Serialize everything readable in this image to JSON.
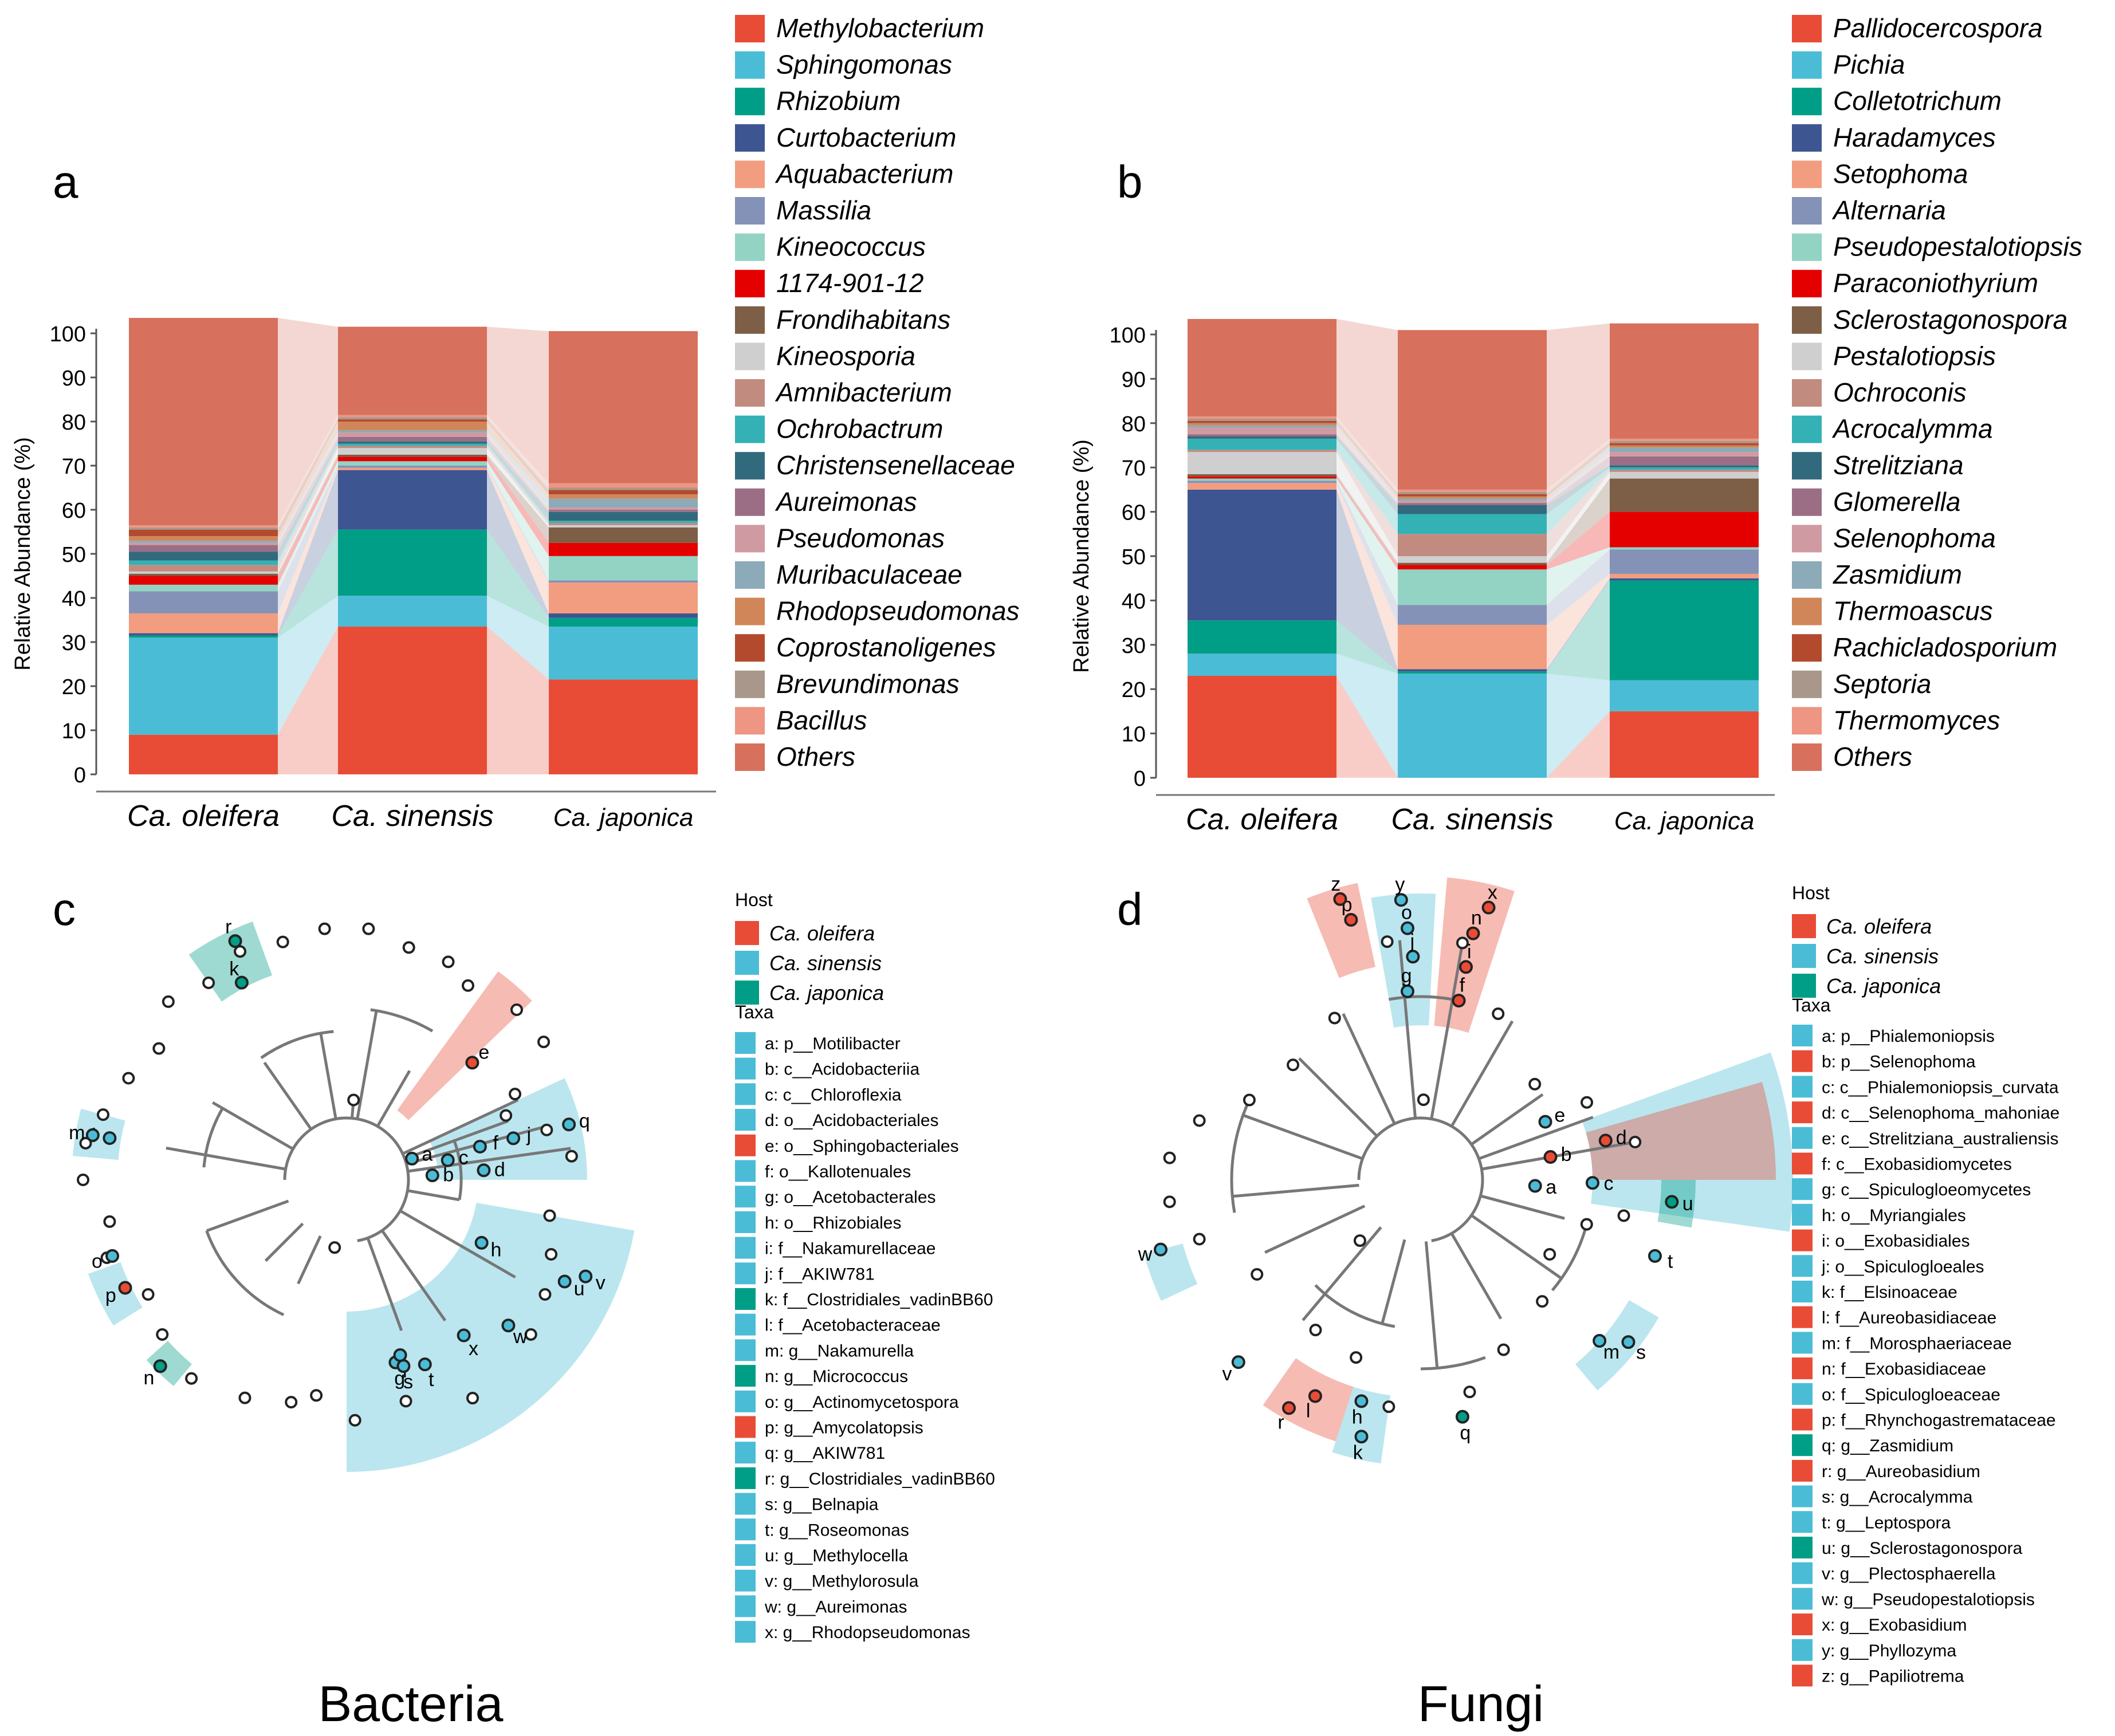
{
  "panels": {
    "a": "a",
    "b": "b",
    "c": "c",
    "d": "d",
    "bacteria_title": "Bacteria",
    "fungi_title": "Fungi"
  },
  "colors": [
    "#e84c36",
    "#4bbcd6",
    "#009e86",
    "#3d5591",
    "#f29d80",
    "#8592b7",
    "#92d3c4",
    "#e50000",
    "#7d5e46",
    "#cfcfcf",
    "#c28b80",
    "#34b1b5",
    "#316a7d",
    "#9b6e86",
    "#cf9aa1",
    "#8caab7",
    "#d18659",
    "#b34a2e",
    "#a8978a",
    "#ee9584",
    "#d7705c"
  ],
  "chart_data": [
    {
      "type": "bar",
      "stacked": true,
      "title": "a",
      "ylabel": "Relative Abundance (%)",
      "ylim": [
        0,
        100
      ],
      "yticks": [
        "0",
        "10",
        "20",
        "30",
        "40",
        "50",
        "60",
        "70",
        "80",
        "90",
        "100"
      ],
      "categories": [
        "Ca. oleifera",
        "Ca. sinensis",
        "Ca. japonica"
      ],
      "legend": [
        "Methylobacterium",
        "Sphingomonas",
        "Rhizobium",
        "Curtobacterium",
        "Aquabacterium",
        "Massilia",
        "Kineococcus",
        "1174-901-12",
        "Frondihabitans",
        "Kineosporia",
        "Amnibacterium",
        "Ochrobactrum",
        "Christensenellaceae",
        "Aureimonas",
        "Pseudomonas",
        "Muribaculaceae",
        "Rhodopseudomonas",
        "Coprostanoligenes",
        "Brevundimonas",
        "Bacillus",
        "Others"
      ],
      "series_values": [
        [
          9.0,
          33.5,
          21.5
        ],
        [
          22.0,
          7.0,
          12.0
        ],
        [
          0.5,
          15.0,
          2.0
        ],
        [
          0.5,
          13.5,
          1.0
        ],
        [
          4.5,
          0.5,
          7.0
        ],
        [
          5.0,
          0.5,
          0.5
        ],
        [
          1.5,
          1.0,
          5.5
        ],
        [
          2.0,
          1.0,
          3.0
        ],
        [
          0.5,
          0.5,
          3.5
        ],
        [
          0.5,
          1.5,
          0.5
        ],
        [
          1.5,
          0.5,
          0.5
        ],
        [
          1.0,
          0.5,
          0.5
        ],
        [
          2.0,
          0.5,
          2.0
        ],
        [
          1.5,
          1.0,
          0.5
        ],
        [
          0.5,
          1.0,
          0.5
        ],
        [
          0.5,
          0.5,
          2.0
        ],
        [
          1.0,
          2.0,
          1.0
        ],
        [
          1.5,
          0.5,
          1.0
        ],
        [
          0.5,
          0.5,
          0.5
        ],
        [
          0.5,
          0.5,
          1.0
        ],
        [
          47.0,
          20.0,
          34.5
        ]
      ]
    },
    {
      "type": "bar",
      "stacked": true,
      "title": "b",
      "ylabel": "Relative Abundance (%)",
      "ylim": [
        0,
        100
      ],
      "yticks": [
        "0",
        "10",
        "20",
        "30",
        "40",
        "50",
        "60",
        "70",
        "80",
        "90",
        "100"
      ],
      "categories": [
        "Ca. oleifera",
        "Ca. sinensis",
        "Ca. japonica"
      ],
      "legend": [
        "Pallidocercospora",
        "Pichia",
        "Colletotrichum",
        "Haradamyces",
        "Setophoma",
        "Alternaria",
        "Pseudopestalotiopsis",
        "Paraconiothyrium",
        "Sclerostagonospora",
        "Pestalotiopsis",
        "Ochroconis",
        "Acrocalymma",
        "Strelitziana",
        "Glomerella",
        "Selenophoma",
        "Zasmidium",
        "Thermoascus",
        "Rachicladosporium",
        "Septoria",
        "Thermomyces",
        "Others"
      ],
      "series_values": [
        [
          23.0,
          0.0,
          15.0
        ],
        [
          5.0,
          23.5,
          7.0
        ],
        [
          7.5,
          0.5,
          22.5
        ],
        [
          29.5,
          0.5,
          0.5
        ],
        [
          1.5,
          10.0,
          1.0
        ],
        [
          0.5,
          4.5,
          5.5
        ],
        [
          0.5,
          8.0,
          0.5
        ],
        [
          0.5,
          1.0,
          8.0
        ],
        [
          0.5,
          0.5,
          7.5
        ],
        [
          5.0,
          1.5,
          1.5
        ],
        [
          0.5,
          5.0,
          0.5
        ],
        [
          2.5,
          4.5,
          0.5
        ],
        [
          0.5,
          2.0,
          0.5
        ],
        [
          0.5,
          0.5,
          2.0
        ],
        [
          1.5,
          0.5,
          1.0
        ],
        [
          0.5,
          0.5,
          1.0
        ],
        [
          0.5,
          0.5,
          0.5
        ],
        [
          0.5,
          0.5,
          0.5
        ],
        [
          0.5,
          0.5,
          0.5
        ],
        [
          0.5,
          0.5,
          0.5
        ],
        [
          22.0,
          36.0,
          26.0
        ]
      ]
    }
  ],
  "cladogram_c": {
    "host_title": "Host",
    "hosts": [
      {
        "name": "Ca. oleifera",
        "color": "#e84c36"
      },
      {
        "name": "Ca. sinensis",
        "color": "#4bbcd6"
      },
      {
        "name": "Ca. japonica",
        "color": "#009e86"
      }
    ],
    "taxa_title": "Taxa",
    "taxa": [
      {
        "label": "a: p__Motilibacter",
        "host": 1
      },
      {
        "label": "b: c__Acidobacteriia",
        "host": 1
      },
      {
        "label": "c: c__Chloroflexia",
        "host": 1
      },
      {
        "label": "d: o__Acidobacteriales",
        "host": 1
      },
      {
        "label": "e: o__Sphingobacteriales",
        "host": 0
      },
      {
        "label": "f: o__Kallotenuales",
        "host": 1
      },
      {
        "label": "g: o__Acetobacterales",
        "host": 1
      },
      {
        "label": "h: o__Rhizobiales",
        "host": 1
      },
      {
        "label": "i: f__Nakamurellaceae",
        "host": 1
      },
      {
        "label": "j: f__AKIW781",
        "host": 1
      },
      {
        "label": "k: f__Clostridiales_vadinBB60",
        "host": 2
      },
      {
        "label": "l: f__Acetobacteraceae",
        "host": 1
      },
      {
        "label": "m: g__Nakamurella",
        "host": 1
      },
      {
        "label": "n: g__Micrococcus",
        "host": 2
      },
      {
        "label": "o: g__Actinomycetospora",
        "host": 1
      },
      {
        "label": "p: g__Amycolatopsis",
        "host": 0
      },
      {
        "label": "q: g__AKIW781",
        "host": 1
      },
      {
        "label": "r: g__Clostridiales_vadinBB60",
        "host": 2
      },
      {
        "label": "s: g__Belnapia",
        "host": 1
      },
      {
        "label": "t: g__Roseomonas",
        "host": 1
      },
      {
        "label": "u: g__Methylocella",
        "host": 1
      },
      {
        "label": "v: g__Methylorosula",
        "host": 1
      },
      {
        "label": "w: g__Aureimonas",
        "host": 1
      },
      {
        "label": "x: g__Rhodopseudomonas",
        "host": 1
      }
    ],
    "node_letters": [
      "a",
      "b",
      "c",
      "d",
      "e",
      "f",
      "g",
      "h",
      "i",
      "j",
      "k",
      "l",
      "m",
      "n",
      "o",
      "p",
      "q",
      "r",
      "s",
      "t",
      "u",
      "v",
      "w",
      "x"
    ]
  },
  "cladogram_d": {
    "host_title": "Host",
    "hosts": [
      {
        "name": "Ca. oleifera",
        "color": "#e84c36"
      },
      {
        "name": "Ca. sinensis",
        "color": "#4bbcd6"
      },
      {
        "name": "Ca. japonica",
        "color": "#009e86"
      }
    ],
    "taxa_title": "Taxa",
    "taxa": [
      {
        "label": "a: p__Phialemoniopsis",
        "host": 1
      },
      {
        "label": "b: p__Selenophoma",
        "host": 0
      },
      {
        "label": "c: c__Phialemoniopsis_curvata",
        "host": 1
      },
      {
        "label": "d: c__Selenophoma_mahoniae",
        "host": 0
      },
      {
        "label": "e: c__Strelitziana_australiensis",
        "host": 1
      },
      {
        "label": "f: c__Exobasidiomycetes",
        "host": 0
      },
      {
        "label": "g: c__Spiculogloeomycetes",
        "host": 1
      },
      {
        "label": "h: o__Myriangiales",
        "host": 1
      },
      {
        "label": "i: o__Exobasidiales",
        "host": 0
      },
      {
        "label": "j: o__Spiculogloeales",
        "host": 1
      },
      {
        "label": "k: f__Elsinoaceae",
        "host": 1
      },
      {
        "label": "l: f__Aureobasidiaceae",
        "host": 0
      },
      {
        "label": "m: f__Morosphaeriaceae",
        "host": 1
      },
      {
        "label": "n: f__Exobasidiaceae",
        "host": 0
      },
      {
        "label": "o: f__Spiculogloeaceae",
        "host": 1
      },
      {
        "label": "p: f__Rhynchogastremataceae",
        "host": 0
      },
      {
        "label": "q: g__Zasmidium",
        "host": 2
      },
      {
        "label": "r: g__Aureobasidium",
        "host": 0
      },
      {
        "label": "s: g__Acrocalymma",
        "host": 1
      },
      {
        "label": "t: g__Leptospora",
        "host": 1
      },
      {
        "label": "u: g__Sclerostagonospora",
        "host": 2
      },
      {
        "label": "v: g__Plectosphaerella",
        "host": 1
      },
      {
        "label": "w: g__Pseudopestalotiopsis",
        "host": 1
      },
      {
        "label": "x: g__Exobasidium",
        "host": 0
      },
      {
        "label": "y: g__Phyllozyma",
        "host": 1
      },
      {
        "label": "z: g__Papiliotrema",
        "host": 0
      }
    ],
    "node_letters": [
      "a",
      "b",
      "c",
      "d",
      "e",
      "f",
      "g",
      "h",
      "i",
      "j",
      "k",
      "l",
      "m",
      "n",
      "o",
      "p",
      "q",
      "r",
      "s",
      "t",
      "u",
      "v",
      "w",
      "x",
      "y",
      "z"
    ]
  }
}
